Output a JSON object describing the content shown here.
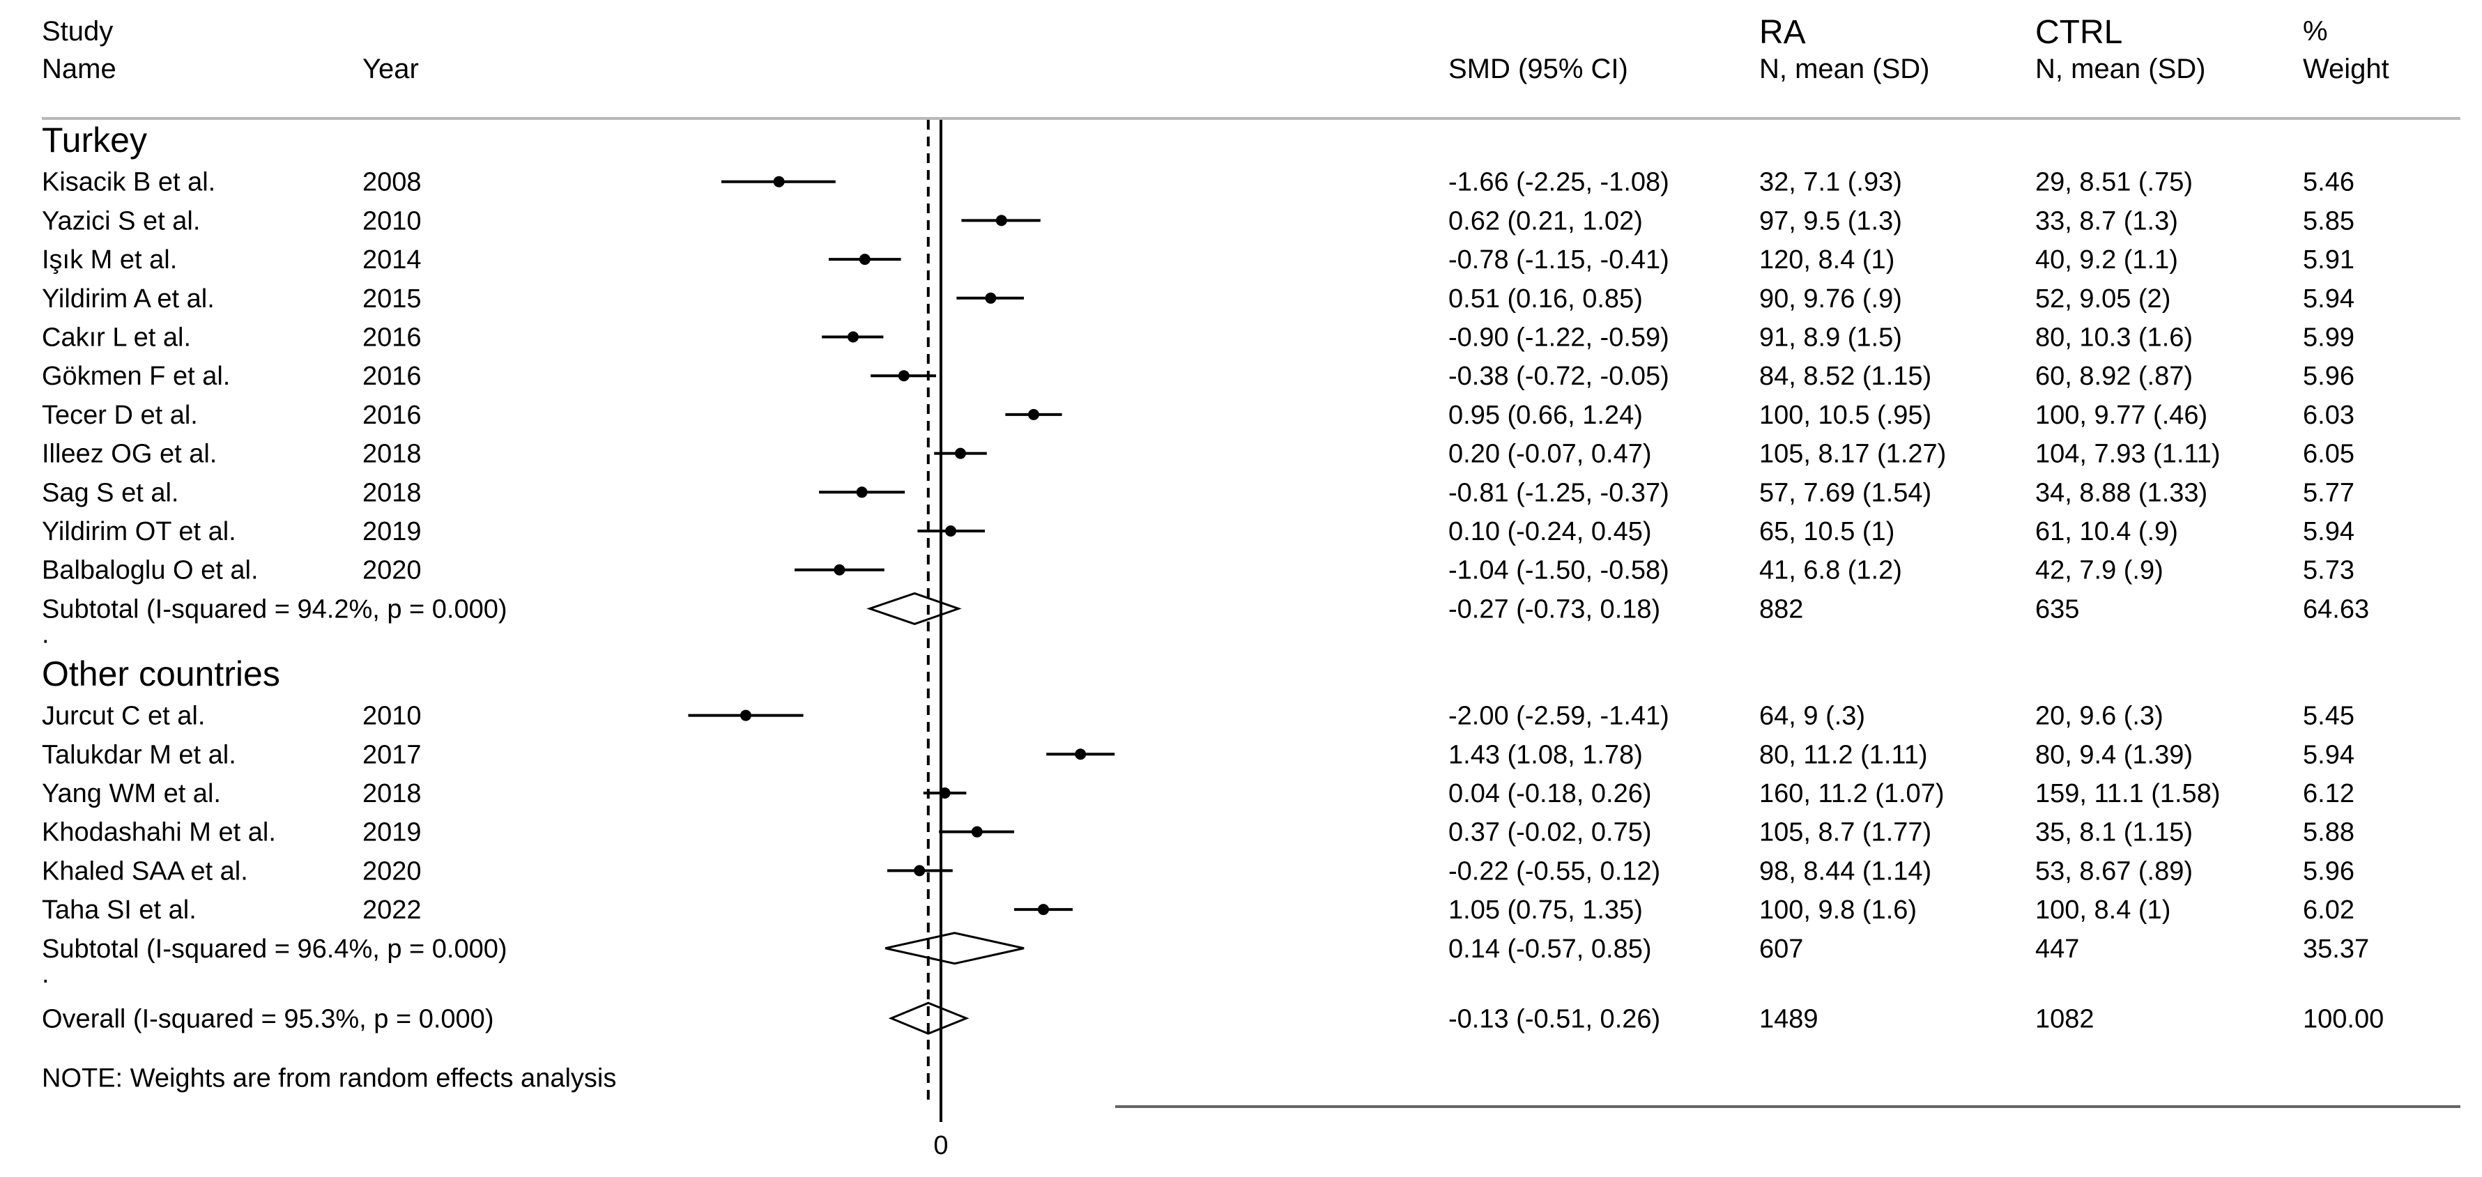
{
  "chart_data": {
    "type": "forest",
    "title": "",
    "x_axis": {
      "ticks": [
        0
      ],
      "tick_labels": [
        "0"
      ],
      "range": [
        -2.6,
        2.0
      ]
    },
    "reference_line": 0,
    "overall_line": -0.13,
    "headers": {
      "study_l1": "Study",
      "study_l2": "Name",
      "year": "Year",
      "smd": "SMD (95% CI)",
      "ra_l1": "RA",
      "ra_l2": "N, mean (SD)",
      "ctrl_l1": "CTRL",
      "ctrl_l2": "N, mean (SD)",
      "weight_l1": "%",
      "weight_l2": "Weight"
    },
    "groups": [
      {
        "name": "Turkey",
        "studies": [
          {
            "study": "Kisacik B et al.",
            "year": "2008",
            "smd": -1.66,
            "lo": -2.25,
            "hi": -1.08,
            "ci_text": "-1.66 (-2.25, -1.08)",
            "ra": "32, 7.1 (.93)",
            "ctrl": "29, 8.51 (.75)",
            "weight": "5.46"
          },
          {
            "study": "Yazici S et al.",
            "year": "2010",
            "smd": 0.62,
            "lo": 0.21,
            "hi": 1.02,
            "ci_text": "0.62 (0.21, 1.02)",
            "ra": "97, 9.5 (1.3)",
            "ctrl": "33, 8.7 (1.3)",
            "weight": "5.85"
          },
          {
            "study": "Işık M et al.",
            "year": "2014",
            "smd": -0.78,
            "lo": -1.15,
            "hi": -0.41,
            "ci_text": "-0.78 (-1.15, -0.41)",
            "ra": "120, 8.4 (1)",
            "ctrl": "40, 9.2 (1.1)",
            "weight": "5.91"
          },
          {
            "study": "Yildirim A et al.",
            "year": "2015",
            "smd": 0.51,
            "lo": 0.16,
            "hi": 0.85,
            "ci_text": "0.51 (0.16, 0.85)",
            "ra": "90, 9.76 (.9)",
            "ctrl": "52, 9.05 (2)",
            "weight": "5.94"
          },
          {
            "study": "Cakır L et al.",
            "year": "2016",
            "smd": -0.9,
            "lo": -1.22,
            "hi": -0.59,
            "ci_text": "-0.90 (-1.22, -0.59)",
            "ra": "91, 8.9 (1.5)",
            "ctrl": "80, 10.3 (1.6)",
            "weight": "5.99"
          },
          {
            "study": "Gökmen F et al.",
            "year": "2016",
            "smd": -0.38,
            "lo": -0.72,
            "hi": -0.05,
            "ci_text": "-0.38 (-0.72, -0.05)",
            "ra": "84, 8.52 (1.15)",
            "ctrl": "60, 8.92 (.87)",
            "weight": "5.96"
          },
          {
            "study": "Tecer D et al.",
            "year": "2016",
            "smd": 0.95,
            "lo": 0.66,
            "hi": 1.24,
            "ci_text": "0.95 (0.66, 1.24)",
            "ra": "100, 10.5 (.95)",
            "ctrl": "100, 9.77 (.46)",
            "weight": "6.03"
          },
          {
            "study": "Illeez OG et al.",
            "year": "2018",
            "smd": 0.2,
            "lo": -0.07,
            "hi": 0.47,
            "ci_text": "0.20 (-0.07, 0.47)",
            "ra": "105, 8.17 (1.27)",
            "ctrl": "104, 7.93 (1.11)",
            "weight": "6.05"
          },
          {
            "study": "Sag S et al.",
            "year": "2018",
            "smd": -0.81,
            "lo": -1.25,
            "hi": -0.37,
            "ci_text": "-0.81 (-1.25, -0.37)",
            "ra": "57, 7.69 (1.54)",
            "ctrl": "34, 8.88 (1.33)",
            "weight": "5.77"
          },
          {
            "study": "Yildirim OT et al.",
            "year": "2019",
            "smd": 0.1,
            "lo": -0.24,
            "hi": 0.45,
            "ci_text": "0.10 (-0.24, 0.45)",
            "ra": "65, 10.5 (1)",
            "ctrl": "61, 10.4 (.9)",
            "weight": "5.94"
          },
          {
            "study": "Balbaloglu O et al.",
            "year": "2020",
            "smd": -1.04,
            "lo": -1.5,
            "hi": -0.58,
            "ci_text": "-1.04 (-1.50, -0.58)",
            "ra": "41, 6.8 (1.2)",
            "ctrl": "42, 7.9 (.9)",
            "weight": "5.73"
          }
        ],
        "subtotal": {
          "label": "Subtotal  (I-squared = 94.2%, p = 0.000)",
          "smd": -0.27,
          "lo": -0.73,
          "hi": 0.18,
          "ci_text": "-0.27 (-0.73, 0.18)",
          "ra": "882",
          "ctrl": "635",
          "weight": "64.63"
        }
      },
      {
        "name": "Other countries",
        "studies": [
          {
            "study": "Jurcut C et al.",
            "year": "2010",
            "smd": -2.0,
            "lo": -2.59,
            "hi": -1.41,
            "ci_text": "-2.00 (-2.59, -1.41)",
            "ra": "64, 9 (.3)",
            "ctrl": "20, 9.6 (.3)",
            "weight": "5.45"
          },
          {
            "study": "Talukdar M et al.",
            "year": "2017",
            "smd": 1.43,
            "lo": 1.08,
            "hi": 1.78,
            "ci_text": "1.43 (1.08, 1.78)",
            "ra": "80, 11.2 (1.11)",
            "ctrl": "80, 9.4 (1.39)",
            "weight": "5.94"
          },
          {
            "study": "Yang WM et al.",
            "year": "2018",
            "smd": 0.04,
            "lo": -0.18,
            "hi": 0.26,
            "ci_text": "0.04 (-0.18, 0.26)",
            "ra": "160, 11.2 (1.07)",
            "ctrl": "159, 11.1 (1.58)",
            "weight": "6.12"
          },
          {
            "study": "Khodashahi M et al.",
            "year": "2019",
            "smd": 0.37,
            "lo": -0.02,
            "hi": 0.75,
            "ci_text": "0.37 (-0.02, 0.75)",
            "ra": "105, 8.7 (1.77)",
            "ctrl": "35, 8.1 (1.15)",
            "weight": "5.88"
          },
          {
            "study": "Khaled SAA et al.",
            "year": "2020",
            "smd": -0.22,
            "lo": -0.55,
            "hi": 0.12,
            "ci_text": "-0.22 (-0.55, 0.12)",
            "ra": "98, 8.44 (1.14)",
            "ctrl": "53, 8.67 (.89)",
            "weight": "5.96"
          },
          {
            "study": "Taha SI et al.",
            "year": "2022",
            "smd": 1.05,
            "lo": 0.75,
            "hi": 1.35,
            "ci_text": "1.05 (0.75, 1.35)",
            "ra": "100, 9.8 (1.6)",
            "ctrl": "100, 8.4 (1)",
            "weight": "6.02"
          }
        ],
        "subtotal": {
          "label": "Subtotal  (I-squared = 96.4%, p = 0.000)",
          "smd": 0.14,
          "lo": -0.57,
          "hi": 0.85,
          "ci_text": "0.14 (-0.57, 0.85)",
          "ra": "607",
          "ctrl": "447",
          "weight": "35.37"
        }
      }
    ],
    "overall": {
      "label": "Overall  (I-squared = 95.3%, p = 0.000)",
      "smd": -0.13,
      "lo": -0.51,
      "hi": 0.26,
      "ci_text": "-0.13 (-0.51, 0.26)",
      "ra": "1489",
      "ctrl": "1082",
      "weight": "100.00"
    },
    "separator": ".",
    "note": "NOTE: Weights are from random effects analysis"
  }
}
